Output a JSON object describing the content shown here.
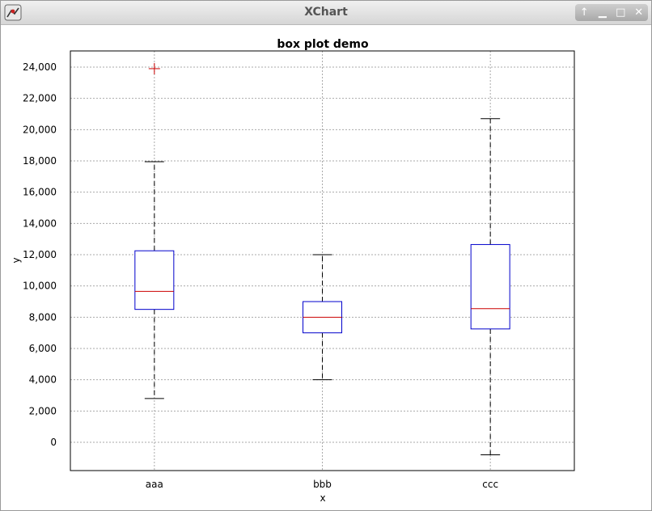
{
  "window": {
    "title": "XChart",
    "icon": "xchart-app-icon",
    "controls": [
      "restore-icon",
      "minimize-icon",
      "maximize-icon",
      "close-icon"
    ]
  },
  "chart_data": {
    "type": "box",
    "title": "box plot demo",
    "xlabel": "x",
    "ylabel": "y",
    "categories": [
      "aaa",
      "bbb",
      "ccc"
    ],
    "ylim": [
      -1800,
      25000
    ],
    "yticks": [
      0,
      2000,
      4000,
      6000,
      8000,
      10000,
      12000,
      14000,
      16000,
      18000,
      20000,
      22000,
      24000
    ],
    "ytick_labels": [
      "0",
      "2,000",
      "4,000",
      "6,000",
      "8,000",
      "10,000",
      "12,000",
      "14,000",
      "16,000",
      "18,000",
      "20,000",
      "22,000",
      "24,000"
    ],
    "grid": true,
    "boxes": [
      {
        "category": "aaa",
        "whisker_low": 2800,
        "q1": 8500,
        "median": 9650,
        "q3": 12250,
        "whisker_high": 17950,
        "outliers": [
          23900
        ]
      },
      {
        "category": "bbb",
        "whisker_low": 4000,
        "q1": 7000,
        "median": 8000,
        "q3": 9000,
        "whisker_high": 12000,
        "outliers": []
      },
      {
        "category": "ccc",
        "whisker_low": -800,
        "q1": 7250,
        "median": 8550,
        "q3": 12650,
        "whisker_high": 20700,
        "outliers": []
      }
    ],
    "colors": {
      "box": "#0000cc",
      "median": "#cc0000",
      "whisker": "#000000",
      "outlier": "#cc0000"
    }
  }
}
